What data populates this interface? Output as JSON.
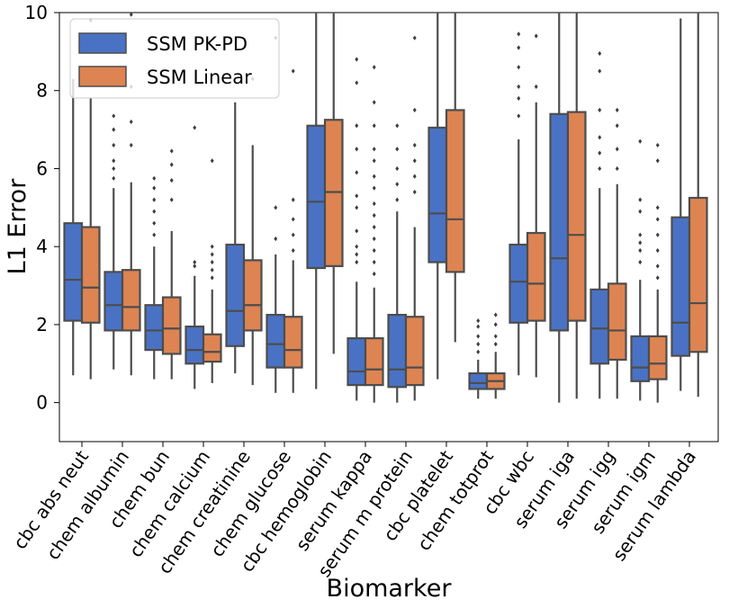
{
  "chart_data": {
    "type": "boxplot",
    "title": "",
    "xlabel": "Biomarker",
    "ylabel": "L1 Error",
    "ylim": [
      -1,
      10
    ],
    "yticks": [
      0,
      2,
      4,
      6,
      8,
      10
    ],
    "grid": false,
    "legend": {
      "position": "top-left",
      "entries": [
        "SSM PK-PD",
        "SSM Linear"
      ]
    },
    "colors": {
      "SSM PK-PD": "#4a72c4",
      "SSM Linear": "#dd8452",
      "line": "#4d4d4d",
      "flier": "#3d3d3d"
    },
    "categories": [
      "cbc abs neut",
      "chem albumin",
      "chem bun",
      "chem calcium",
      "chem creatinine",
      "chem glucose",
      "cbc hemoglobin",
      "serum kappa",
      "serum m protein",
      "cbc platelet",
      "chem totprot",
      "cbc wbc",
      "serum iga",
      "serum igg",
      "serum igm",
      "serum lambda"
    ],
    "series": [
      {
        "name": "SSM PK-PD",
        "boxes": [
          {
            "wlo": 0.7,
            "q1": 2.1,
            "med": 3.15,
            "q3": 4.6,
            "whi": 8.3,
            "fliers": []
          },
          {
            "wlo": 0.85,
            "q1": 1.85,
            "med": 2.5,
            "q3": 3.35,
            "whi": 5.5,
            "fliers": [
              5.75,
              6.0,
              6.2,
              6.6,
              7.0,
              7.35
            ]
          },
          {
            "wlo": 0.6,
            "q1": 1.35,
            "med": 1.85,
            "q3": 2.5,
            "whi": 4.0,
            "fliers": [
              4.3,
              4.6,
              4.9,
              5.2,
              5.5,
              5.75
            ]
          },
          {
            "wlo": 0.35,
            "q1": 1.0,
            "med": 1.35,
            "q3": 1.95,
            "whi": 3.25,
            "fliers": [
              3.5,
              3.6,
              7.05
            ]
          },
          {
            "wlo": 0.75,
            "q1": 1.45,
            "med": 2.35,
            "q3": 4.05,
            "whi": 7.7,
            "fliers": []
          },
          {
            "wlo": 0.25,
            "q1": 0.9,
            "med": 1.5,
            "q3": 2.25,
            "whi": 3.8,
            "fliers": [
              4.2,
              5.0,
              9.35
            ]
          },
          {
            "wlo": 0.35,
            "q1": 3.45,
            "med": 5.15,
            "q3": 7.1,
            "whi": 10.0,
            "fliers": []
          },
          {
            "wlo": 0.05,
            "q1": 0.45,
            "med": 0.8,
            "q3": 1.65,
            "whi": 3.1,
            "fliers": [
              3.6,
              3.8,
              4.0,
              4.4,
              5.0,
              5.3,
              5.9,
              6.5,
              7.1,
              8.2,
              8.8
            ]
          },
          {
            "wlo": 0.0,
            "q1": 0.4,
            "med": 0.85,
            "q3": 2.25,
            "whi": 4.9,
            "fliers": [
              5.2,
              5.6,
              6.0,
              6.5,
              7.1
            ]
          },
          {
            "wlo": 0.6,
            "q1": 3.6,
            "med": 4.85,
            "q3": 7.05,
            "whi": 10.0,
            "fliers": []
          },
          {
            "wlo": 0.1,
            "q1": 0.35,
            "med": 0.5,
            "q3": 0.75,
            "whi": 1.1,
            "fliers": [
              1.3,
              1.5,
              1.7,
              1.95,
              2.1
            ]
          },
          {
            "wlo": 0.7,
            "q1": 2.05,
            "med": 3.1,
            "q3": 4.05,
            "whi": 6.75,
            "fliers": [
              7.35,
              7.8,
              8.1,
              8.6,
              9.1,
              9.45
            ]
          },
          {
            "wlo": 0.0,
            "q1": 1.85,
            "med": 3.7,
            "q3": 7.4,
            "whi": 10.0,
            "fliers": []
          },
          {
            "wlo": 0.1,
            "q1": 1.0,
            "med": 1.9,
            "q3": 2.9,
            "whi": 5.5,
            "fliers": [
              6.0,
              6.4,
              6.8,
              7.5,
              8.5,
              8.95
            ]
          },
          {
            "wlo": 0.05,
            "q1": 0.55,
            "med": 0.9,
            "q3": 1.7,
            "whi": 3.15,
            "fliers": [
              3.6,
              3.9,
              4.1,
              4.3,
              4.9,
              5.2,
              6.7
            ]
          },
          {
            "wlo": 0.3,
            "q1": 1.2,
            "med": 2.05,
            "q3": 4.75,
            "whi": 9.85,
            "fliers": []
          }
        ]
      },
      {
        "name": "SSM Linear",
        "boxes": [
          {
            "wlo": 0.6,
            "q1": 2.05,
            "med": 2.95,
            "q3": 4.5,
            "whi": 7.8,
            "fliers": [
              9.8
            ]
          },
          {
            "wlo": 0.7,
            "q1": 1.85,
            "med": 2.45,
            "q3": 3.4,
            "whi": 5.65,
            "fliers": [
              6.6,
              7.2,
              8.1,
              9.95
            ]
          },
          {
            "wlo": 0.6,
            "q1": 1.25,
            "med": 1.9,
            "q3": 2.7,
            "whi": 4.4,
            "fliers": [
              5.2,
              5.7,
              6.1,
              6.45
            ]
          },
          {
            "wlo": 0.5,
            "q1": 1.05,
            "med": 1.3,
            "q3": 1.75,
            "whi": 2.9,
            "fliers": [
              3.2,
              3.4,
              3.6,
              3.8,
              4.0,
              6.2
            ]
          },
          {
            "wlo": 0.45,
            "q1": 1.85,
            "med": 2.5,
            "q3": 3.65,
            "whi": 6.6,
            "fliers": [
              8.3
            ]
          },
          {
            "wlo": 0.25,
            "q1": 0.9,
            "med": 1.35,
            "q3": 2.2,
            "whi": 3.65,
            "fliers": [
              3.9,
              4.3,
              4.7,
              5.2,
              8.5
            ]
          },
          {
            "wlo": 1.25,
            "q1": 3.5,
            "med": 5.4,
            "q3": 7.25,
            "whi": 10.0,
            "fliers": []
          },
          {
            "wlo": 0.0,
            "q1": 0.45,
            "med": 0.85,
            "q3": 1.65,
            "whi": 2.95,
            "fliers": [
              3.3,
              3.6,
              3.9,
              4.2,
              4.5,
              4.8,
              5.1,
              5.5,
              5.8,
              6.2,
              6.5,
              7.1,
              7.7,
              8.6
            ]
          },
          {
            "wlo": 0.05,
            "q1": 0.45,
            "med": 0.9,
            "q3": 2.2,
            "whi": 4.5,
            "fliers": [
              5.4,
              5.8,
              6.2,
              6.6,
              7.5,
              9.35
            ]
          },
          {
            "wlo": 1.55,
            "q1": 3.35,
            "med": 4.7,
            "q3": 7.5,
            "whi": 10.0,
            "fliers": []
          },
          {
            "wlo": 0.1,
            "q1": 0.35,
            "med": 0.55,
            "q3": 0.75,
            "whi": 1.3,
            "fliers": [
              1.5,
              1.7,
              2.0,
              2.25
            ]
          },
          {
            "wlo": 0.65,
            "q1": 2.1,
            "med": 3.05,
            "q3": 4.35,
            "whi": 7.7,
            "fliers": [
              8.1,
              9.4
            ]
          },
          {
            "wlo": 0.1,
            "q1": 2.1,
            "med": 4.3,
            "q3": 7.45,
            "whi": 10.0,
            "fliers": []
          },
          {
            "wlo": 0.1,
            "q1": 1.1,
            "med": 1.85,
            "q3": 3.05,
            "whi": 5.6,
            "fliers": [
              6.0,
              6.5,
              7.1,
              7.5
            ]
          },
          {
            "wlo": 0.0,
            "q1": 0.6,
            "med": 1.0,
            "q3": 1.7,
            "whi": 2.9,
            "fliers": [
              3.2,
              3.5,
              3.9,
              4.3,
              4.7,
              5.0,
              6.2,
              6.6
            ]
          },
          {
            "wlo": 0.15,
            "q1": 1.3,
            "med": 2.55,
            "q3": 5.25,
            "whi": 10.0,
            "fliers": []
          }
        ]
      }
    ]
  }
}
